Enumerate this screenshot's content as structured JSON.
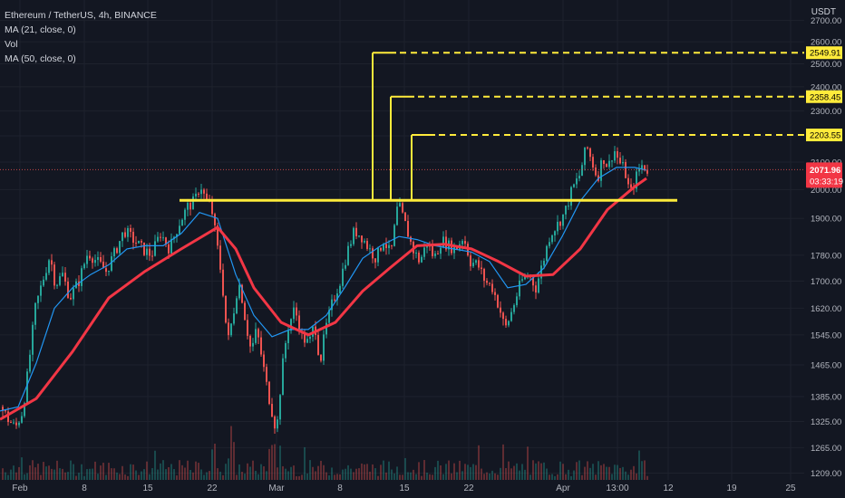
{
  "legend": {
    "title": "Ethereum / TetherUS, 4h, BINANCE",
    "ma21": "MA (21, close, 0)",
    "vol": "Vol",
    "ma50": "MA (50, close, 0)"
  },
  "currency_label": "USDT",
  "colors": {
    "background": "#131722",
    "grid": "#1e222d",
    "text": "#b2b5be",
    "up": "#26a69a",
    "down": "#ef5350",
    "ma21": "#2196f3",
    "ma50": "#f23645",
    "annotation": "#ffeb3b",
    "last_price_bg": "#f23645"
  },
  "chart_data": {
    "type": "candlestick",
    "symbol": "ETHUSDT",
    "interval": "4h",
    "exchange": "BINANCE",
    "x_ticks": [
      "Feb",
      "8",
      "15",
      "22",
      "Mar",
      "8",
      "15",
      "22",
      "Apr",
      "13:00",
      "12",
      "19",
      "25"
    ],
    "y_ticks": [
      2700.0,
      2600.0,
      2500.0,
      2400.0,
      2300.0,
      2200.0,
      2100.0,
      2000.0,
      1900.0,
      1780.0,
      1700.0,
      1620.0,
      1545.0,
      1465.0,
      1385.0,
      1325.0,
      1265.0,
      1209.0
    ],
    "ylim": [
      1205,
      2770
    ],
    "y_scale": "log",
    "price_path": [
      [
        0,
        1360
      ],
      [
        8,
        1330
      ],
      [
        16,
        1310
      ],
      [
        24,
        1350
      ],
      [
        30,
        1450
      ],
      [
        38,
        1620
      ],
      [
        46,
        1700
      ],
      [
        54,
        1780
      ],
      [
        60,
        1690
      ],
      [
        68,
        1720
      ],
      [
        76,
        1650
      ],
      [
        86,
        1700
      ],
      [
        96,
        1790
      ],
      [
        106,
        1760
      ],
      [
        116,
        1730
      ],
      [
        126,
        1790
      ],
      [
        136,
        1860
      ],
      [
        146,
        1830
      ],
      [
        156,
        1800
      ],
      [
        166,
        1780
      ],
      [
        176,
        1850
      ],
      [
        186,
        1800
      ],
      [
        196,
        1880
      ],
      [
        206,
        1940
      ],
      [
        214,
        1960
      ],
      [
        220,
        2020
      ],
      [
        226,
        1960
      ],
      [
        232,
        1940
      ],
      [
        238,
        1820
      ],
      [
        244,
        1700
      ],
      [
        250,
        1520
      ],
      [
        256,
        1600
      ],
      [
        262,
        1700
      ],
      [
        266,
        1650
      ],
      [
        270,
        1580
      ],
      [
        276,
        1500
      ],
      [
        282,
        1560
      ],
      [
        288,
        1480
      ],
      [
        294,
        1400
      ],
      [
        300,
        1340
      ],
      [
        304,
        1300
      ],
      [
        310,
        1450
      ],
      [
        316,
        1560
      ],
      [
        324,
        1620
      ],
      [
        332,
        1540
      ],
      [
        340,
        1520
      ],
      [
        346,
        1580
      ],
      [
        352,
        1470
      ],
      [
        358,
        1560
      ],
      [
        366,
        1640
      ],
      [
        374,
        1700
      ],
      [
        382,
        1790
      ],
      [
        390,
        1860
      ],
      [
        398,
        1840
      ],
      [
        406,
        1800
      ],
      [
        414,
        1770
      ],
      [
        422,
        1830
      ],
      [
        430,
        1780
      ],
      [
        438,
        1950
      ],
      [
        446,
        1880
      ],
      [
        454,
        1800
      ],
      [
        462,
        1760
      ],
      [
        470,
        1820
      ],
      [
        478,
        1770
      ],
      [
        486,
        1830
      ],
      [
        494,
        1810
      ],
      [
        502,
        1800
      ],
      [
        510,
        1840
      ],
      [
        518,
        1760
      ],
      [
        526,
        1750
      ],
      [
        534,
        1700
      ],
      [
        542,
        1680
      ],
      [
        550,
        1620
      ],
      [
        556,
        1560
      ],
      [
        562,
        1600
      ],
      [
        568,
        1650
      ],
      [
        574,
        1700
      ],
      [
        582,
        1720
      ],
      [
        590,
        1680
      ],
      [
        598,
        1760
      ],
      [
        606,
        1850
      ],
      [
        614,
        1880
      ],
      [
        622,
        1920
      ],
      [
        630,
        2000
      ],
      [
        638,
        2050
      ],
      [
        646,
        2160
      ],
      [
        652,
        2100
      ],
      [
        658,
        2040
      ],
      [
        664,
        2120
      ],
      [
        670,
        2080
      ],
      [
        676,
        2150
      ],
      [
        682,
        2100
      ],
      [
        688,
        2070
      ],
      [
        694,
        1980
      ],
      [
        700,
        2040
      ],
      [
        706,
        2090
      ],
      [
        713,
        2072
      ]
    ],
    "ma21": [
      [
        0,
        1350
      ],
      [
        20,
        1360
      ],
      [
        40,
        1470
      ],
      [
        60,
        1620
      ],
      [
        80,
        1680
      ],
      [
        100,
        1720
      ],
      [
        120,
        1750
      ],
      [
        140,
        1800
      ],
      [
        160,
        1810
      ],
      [
        180,
        1810
      ],
      [
        200,
        1850
      ],
      [
        220,
        1920
      ],
      [
        240,
        1900
      ],
      [
        260,
        1720
      ],
      [
        280,
        1600
      ],
      [
        300,
        1540
      ],
      [
        320,
        1560
      ],
      [
        340,
        1560
      ],
      [
        360,
        1600
      ],
      [
        380,
        1680
      ],
      [
        400,
        1770
      ],
      [
        420,
        1810
      ],
      [
        440,
        1840
      ],
      [
        460,
        1830
      ],
      [
        480,
        1810
      ],
      [
        500,
        1800
      ],
      [
        520,
        1790
      ],
      [
        540,
        1760
      ],
      [
        560,
        1680
      ],
      [
        580,
        1690
      ],
      [
        600,
        1740
      ],
      [
        620,
        1840
      ],
      [
        640,
        1960
      ],
      [
        660,
        2040
      ],
      [
        680,
        2080
      ],
      [
        700,
        2080
      ],
      [
        713,
        2070
      ]
    ],
    "ma50": [
      [
        0,
        1330
      ],
      [
        40,
        1380
      ],
      [
        80,
        1500
      ],
      [
        120,
        1650
      ],
      [
        160,
        1730
      ],
      [
        200,
        1800
      ],
      [
        240,
        1870
      ],
      [
        260,
        1800
      ],
      [
        280,
        1680
      ],
      [
        310,
        1580
      ],
      [
        340,
        1545
      ],
      [
        370,
        1580
      ],
      [
        400,
        1670
      ],
      [
        430,
        1740
      ],
      [
        460,
        1810
      ],
      [
        490,
        1815
      ],
      [
        520,
        1800
      ],
      [
        550,
        1760
      ],
      [
        580,
        1715
      ],
      [
        610,
        1720
      ],
      [
        640,
        1800
      ],
      [
        670,
        1930
      ],
      [
        700,
        2010
      ],
      [
        713,
        2040
      ]
    ],
    "horizontal_line": 1962,
    "levels": [
      {
        "start_x": 411,
        "value": 2549.91,
        "label": "2549.91"
      },
      {
        "start_x": 431,
        "value": 2358.45,
        "label": "2358.45"
      },
      {
        "start_x": 454,
        "value": 2203.55,
        "label": "2203.55"
      }
    ],
    "last_price": {
      "value": 2071.96,
      "label": "2071.96",
      "countdown": "03:33:19"
    }
  }
}
